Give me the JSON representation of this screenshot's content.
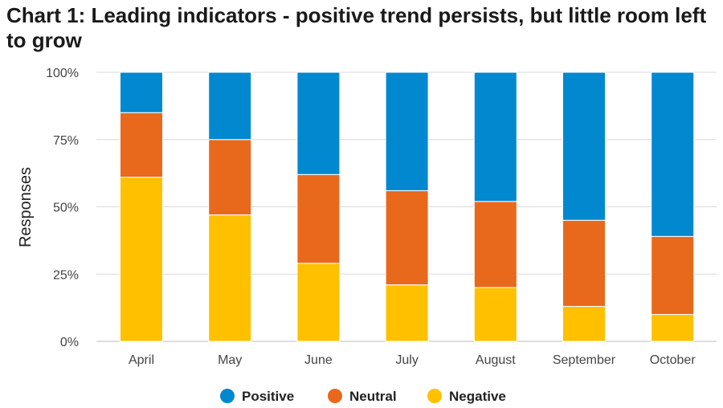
{
  "chart_data": {
    "type": "bar",
    "stacked": true,
    "title": "Chart 1: Leading indicators - positive trend persists, but little room left to grow",
    "xlabel": "",
    "ylabel": "Responses",
    "ylim": [
      0,
      100
    ],
    "yticks": [
      0,
      25,
      50,
      75,
      100
    ],
    "ytick_labels": [
      "0%",
      "25%",
      "50%",
      "75%",
      "100%"
    ],
    "categories": [
      "April",
      "May",
      "June",
      "July",
      "August",
      "September",
      "October"
    ],
    "series": [
      {
        "name": "Negative",
        "color": "#FFC000",
        "values": [
          61,
          47,
          29,
          21,
          20,
          13,
          10
        ]
      },
      {
        "name": "Neutral",
        "color": "#E8691C",
        "values": [
          24,
          28,
          33,
          35,
          32,
          32,
          29
        ]
      },
      {
        "name": "Positive",
        "color": "#0288CF",
        "values": [
          15,
          25,
          38,
          44,
          48,
          55,
          61
        ]
      }
    ],
    "legend": {
      "position": "bottom",
      "order": [
        "Positive",
        "Neutral",
        "Negative"
      ]
    },
    "grid": true
  }
}
